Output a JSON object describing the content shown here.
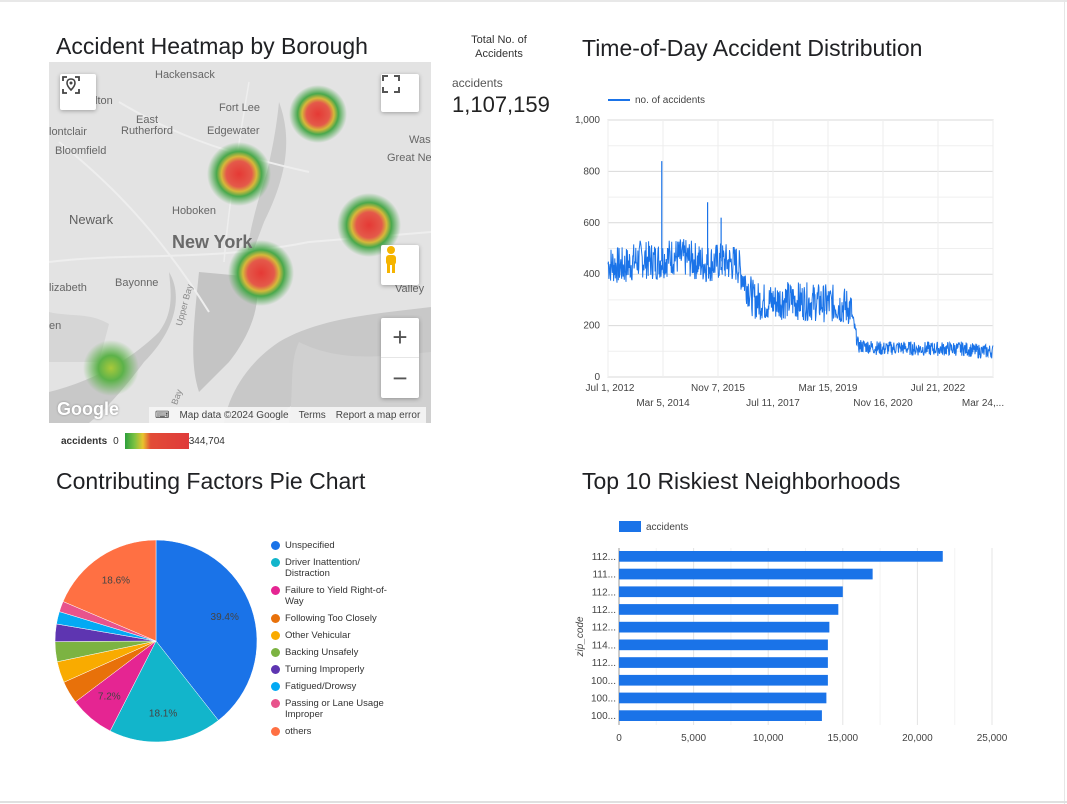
{
  "heatmap": {
    "title": "Accident Heatmap by Borough",
    "place_labels": {
      "hackensack": "Hackensack",
      "clifton": "lton",
      "east_rutherford": "East\nRutherford",
      "montclair": "lontclair",
      "bloomfield": "Bloomfield",
      "fort_lee": "Fort Lee",
      "edgewater": "Edgewater",
      "wash": "Was",
      "great_neck": "Great Ne",
      "newark": "Newark",
      "hoboken": "Hoboken",
      "new_york": "New York",
      "elizabeth": "lizabeth",
      "bayonne": "Bayonne",
      "valley": "Valley",
      "upper_bay": "Upper Bay",
      "bay": "Bay",
      "en": "en"
    },
    "attribution": {
      "keyboard": "⌨",
      "map_data": "Map data ©2024 Google",
      "terms": "Terms",
      "report": "Report a map error"
    },
    "google_logo": "Google",
    "legend": {
      "label": "accidents",
      "min": "0",
      "max": "344,704"
    },
    "controls": {
      "locate_icon": "location-icon",
      "fullscreen_icon": "fullscreen-icon",
      "pegman_icon": "pegman-icon",
      "zoom_in": "+",
      "zoom_out": "−"
    }
  },
  "scorecard": {
    "title": "Total No. of Accidents",
    "metric_label": "accidents",
    "value": "1,107,159"
  },
  "timeseries": {
    "title": "Time-of-Day Accident Distribution",
    "legend": "no. of accidents",
    "color": "#1a73e8"
  },
  "pie": {
    "title": "Contributing Factors Pie Chart"
  },
  "bars": {
    "title": "Top 10 Riskiest Neighborhoods",
    "legend": "accidents",
    "ylabel": "zip_code",
    "color": "#1a73e8"
  },
  "chart_data": [
    {
      "type": "line",
      "title": "Time-of-Day Accident Distribution",
      "series": [
        {
          "name": "no. of accidents"
        }
      ],
      "x_tick_labels": [
        "Jul 1, 2012",
        "Mar 5, 2014",
        "Nov 7, 2015",
        "Jul 11, 2017",
        "Mar 15, 2019",
        "Nov 16, 2020",
        "Jul 21, 2022",
        "Mar 24,..."
      ],
      "x": [
        "2012-07-01",
        "2013-01-01",
        "2013-07-01",
        "2014-01-01",
        "2014-07-01",
        "2015-01-01",
        "2015-07-01",
        "2016-01-01",
        "2016-07-01",
        "2017-01-01",
        "2017-07-01",
        "2018-01-01",
        "2018-07-01",
        "2019-01-01",
        "2019-07-01",
        "2020-01-01",
        "2020-04-01",
        "2020-07-01",
        "2021-01-01",
        "2021-07-01",
        "2022-01-01",
        "2022-07-01",
        "2023-01-01",
        "2023-07-01",
        "2024-01-01"
      ],
      "values": [
        440,
        430,
        460,
        450,
        470,
        460,
        440,
        450,
        440,
        300,
        290,
        300,
        295,
        290,
        285,
        270,
        120,
        120,
        110,
        115,
        110,
        110,
        110,
        110,
        100
      ],
      "peaks": [
        {
          "x": "2014-03-01",
          "value": 840
        },
        {
          "x": "2015-08-01",
          "value": 680
        },
        {
          "x": "2016-01-01",
          "value": 620
        }
      ],
      "y_tick_labels": [
        "0",
        "200",
        "400",
        "600",
        "800",
        "1,000"
      ],
      "ylim": [
        0,
        1000
      ],
      "grid": true,
      "legend_position": "top-left"
    },
    {
      "type": "pie",
      "title": "Contributing Factors Pie Chart",
      "slices": [
        {
          "label": "Unspecified",
          "value": 39.4,
          "color": "#1a73e8",
          "data_label": "39.4%"
        },
        {
          "label": "Driver Inattention/ Distraction",
          "value": 18.1,
          "color": "#12b5cb",
          "data_label": "18.1%"
        },
        {
          "label": "Failure to Yield Right-of-Way",
          "value": 7.2,
          "color": "#e52592",
          "data_label": "7.2%"
        },
        {
          "label": "Following Too Closely",
          "value": 3.6,
          "color": "#e8710a",
          "data_label": ""
        },
        {
          "label": "Other Vehicular",
          "value": 3.4,
          "color": "#f9ab00",
          "data_label": ""
        },
        {
          "label": "Backing Unsafely",
          "value": 3.2,
          "color": "#7cb342",
          "data_label": ""
        },
        {
          "label": "Turning Improperly",
          "value": 2.8,
          "color": "#5e35b1",
          "data_label": ""
        },
        {
          "label": "Fatigued/Drowsy",
          "value": 2.0,
          "color": "#03a9f4",
          "data_label": ""
        },
        {
          "label": "Passing or Lane Usage Improper",
          "value": 1.7,
          "color": "#e8538c",
          "data_label": ""
        },
        {
          "label": "others",
          "value": 18.6,
          "color": "#ff7043",
          "data_label": "18.6%"
        }
      ]
    },
    {
      "type": "bar",
      "orientation": "horizontal",
      "title": "Top 10 Riskiest Neighborhoods",
      "categories": [
        "112...",
        "111...",
        "112...",
        "112...",
        "112...",
        "114...",
        "112...",
        "100...",
        "100...",
        "100..."
      ],
      "values": [
        21700,
        17000,
        15000,
        14700,
        14100,
        14000,
        14000,
        14000,
        13900,
        13600
      ],
      "series": [
        {
          "name": "accidents"
        }
      ],
      "ylabel": "zip_code",
      "x_tick_labels": [
        "0",
        "5,000",
        "10,000",
        "15,000",
        "20,000",
        "25,000"
      ],
      "xlim": [
        0,
        25000
      ],
      "grid": true,
      "legend_position": "top-left"
    }
  ]
}
